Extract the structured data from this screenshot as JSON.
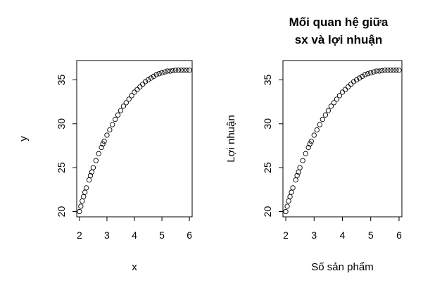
{
  "chart_data": [
    {
      "type": "scatter",
      "title_lines": [],
      "xlabel": "x",
      "ylabel": "y",
      "xlim": [
        1.9,
        6.1
      ],
      "ylim": [
        19.4,
        37.2
      ],
      "xticks": [
        2,
        3,
        4,
        5,
        6
      ],
      "yticks": [
        20,
        25,
        30,
        35
      ],
      "grid": false,
      "marker": "open-circle",
      "series": [
        {
          "x": [
            2.0,
            2.05,
            2.1,
            2.15,
            2.2,
            2.25,
            2.35,
            2.4,
            2.45,
            2.5,
            2.6,
            2.7,
            2.8,
            2.85,
            2.9,
            3.0,
            3.1,
            3.2,
            3.3,
            3.4,
            3.5,
            3.6,
            3.7,
            3.8,
            3.9,
            4.0,
            4.1,
            4.2,
            4.3,
            4.4,
            4.5,
            4.6,
            4.7,
            4.8,
            4.9,
            5.0,
            5.1,
            5.2,
            5.3,
            5.4,
            5.5,
            5.6,
            5.7,
            5.8,
            5.9,
            6.0
          ],
          "y": [
            20.0,
            20.6,
            21.2,
            21.7,
            22.2,
            22.7,
            23.6,
            24.1,
            24.5,
            25.0,
            25.8,
            26.6,
            27.3,
            27.7,
            28.0,
            28.7,
            29.3,
            29.9,
            30.5,
            31.0,
            31.5,
            32.0,
            32.4,
            32.8,
            33.2,
            33.6,
            33.9,
            34.2,
            34.5,
            34.8,
            35.0,
            35.2,
            35.4,
            35.6,
            35.7,
            35.8,
            35.9,
            36.0,
            36.0,
            36.05,
            36.1,
            36.1,
            36.1,
            36.1,
            36.1,
            36.1
          ]
        }
      ]
    },
    {
      "type": "scatter",
      "title_lines": [
        "Mối quan hệ giữa",
        "sx và lợi nhuận"
      ],
      "xlabel": "Số sản phẩm",
      "ylabel": "Lợi nhuận",
      "xlim": [
        1.9,
        6.1
      ],
      "ylim": [
        19.4,
        37.2
      ],
      "xticks": [
        2,
        3,
        4,
        5,
        6
      ],
      "yticks": [
        20,
        25,
        30,
        35
      ],
      "grid": false,
      "marker": "open-circle",
      "series": [
        {
          "x": [
            2.0,
            2.05,
            2.1,
            2.15,
            2.2,
            2.25,
            2.35,
            2.4,
            2.45,
            2.5,
            2.6,
            2.7,
            2.8,
            2.85,
            2.9,
            3.0,
            3.1,
            3.2,
            3.3,
            3.4,
            3.5,
            3.6,
            3.7,
            3.8,
            3.9,
            4.0,
            4.1,
            4.2,
            4.3,
            4.4,
            4.5,
            4.6,
            4.7,
            4.8,
            4.9,
            5.0,
            5.1,
            5.2,
            5.3,
            5.4,
            5.5,
            5.6,
            5.7,
            5.8,
            5.9,
            6.0
          ],
          "y": [
            20.0,
            20.6,
            21.2,
            21.7,
            22.2,
            22.7,
            23.6,
            24.1,
            24.5,
            25.0,
            25.8,
            26.6,
            27.3,
            27.7,
            28.0,
            28.7,
            29.3,
            29.9,
            30.5,
            31.0,
            31.5,
            32.0,
            32.4,
            32.8,
            33.2,
            33.6,
            33.9,
            34.2,
            34.5,
            34.8,
            35.0,
            35.2,
            35.4,
            35.6,
            35.7,
            35.8,
            35.9,
            36.0,
            36.0,
            36.05,
            36.1,
            36.1,
            36.1,
            36.1,
            36.1,
            36.1
          ]
        }
      ]
    }
  ]
}
